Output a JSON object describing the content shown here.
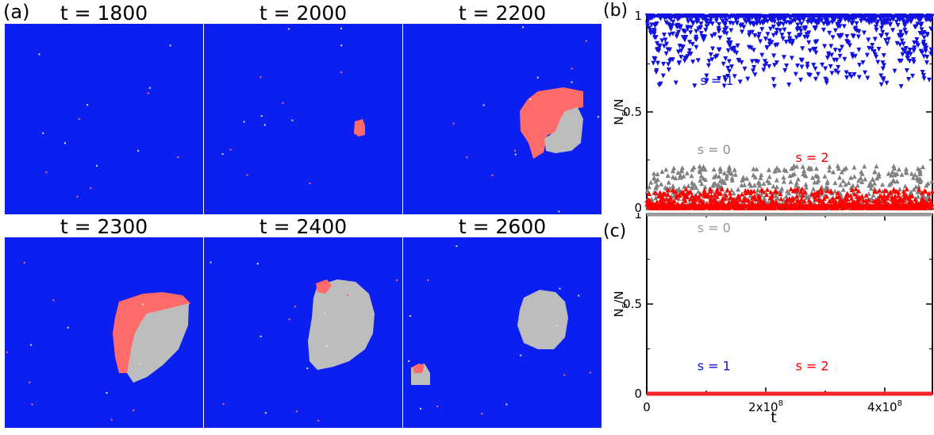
{
  "panel_a": {
    "label": "(a)",
    "snapshots": [
      {
        "title": "t = 1800"
      },
      {
        "title": "t = 2000"
      },
      {
        "title": "t = 2200"
      },
      {
        "title": "t = 2300"
      },
      {
        "title": "t = 2400"
      },
      {
        "title": "t = 2600"
      }
    ]
  },
  "colors": {
    "s0": "#bdbdbd",
    "s1": "#0a1ff0",
    "s2": "#ff6b6b",
    "s0_markers": "#808080",
    "s1_markers": "#1010e0",
    "s2_markers": "#ff0000",
    "s0_line": "#9a9a9a",
    "s2_line": "#ff2222"
  },
  "chart_data": [
    {
      "type": "scatter",
      "panel": "(b)",
      "xlim": [
        0,
        480000000
      ],
      "ylim": [
        0,
        1
      ],
      "ylabel_main": "N",
      "ylabel_sub": "s",
      "ylabel_tail": "/N",
      "yticks": [
        "0",
        "0.5",
        "1"
      ],
      "xticks": [],
      "annotations": [
        {
          "text": "s = 1",
          "x": 90000000,
          "y": 0.64,
          "color": "#1010e0"
        },
        {
          "text": "s = 0",
          "x": 85000000,
          "y": 0.28,
          "color": "#909090"
        },
        {
          "text": "s = 2",
          "x": 250000000,
          "y": 0.24,
          "color": "#ff0000"
        }
      ],
      "series": [
        {
          "marker": "triangle-down",
          "color": "#1010e0",
          "band_top": 1.0,
          "band_bottom": 0.63
        },
        {
          "marker": "triangle-up",
          "color": "#808080",
          "band_top": 0.22,
          "band_bottom": 0.0
        },
        {
          "marker": "triangle-up",
          "color": "#ff0000",
          "band_top": 0.1,
          "band_bottom": 0.0
        }
      ]
    },
    {
      "type": "line",
      "panel": "(c)",
      "xlim": [
        0,
        480000000
      ],
      "ylim": [
        0,
        1
      ],
      "ylabel_main": "N",
      "ylabel_sub": "s",
      "ylabel_tail": "/N",
      "yticks": [
        "0",
        "0.5",
        "1"
      ],
      "xticks": [
        {
          "value": 0,
          "label": "0"
        },
        {
          "value": 200000000,
          "label": "2x10",
          "exp": "8"
        },
        {
          "value": 400000000,
          "label": "4x10",
          "exp": "8"
        }
      ],
      "xlabel": "t",
      "annotations": [
        {
          "text": "s = 0",
          "x": 85000000,
          "y": 0.9,
          "color": "#9a9a9a"
        },
        {
          "text": "s = 1",
          "x": 85000000,
          "y": 0.13,
          "color": "#1010e0"
        },
        {
          "text": "s = 2",
          "x": 250000000,
          "y": 0.13,
          "color": "#ff0000"
        }
      ],
      "series": [
        {
          "color": "#9a9a9a",
          "x": [
            0,
            480000000
          ],
          "y": [
            1,
            1
          ]
        },
        {
          "color": "#ff2222",
          "x": [
            0,
            480000000
          ],
          "y": [
            0,
            0
          ]
        }
      ]
    }
  ]
}
